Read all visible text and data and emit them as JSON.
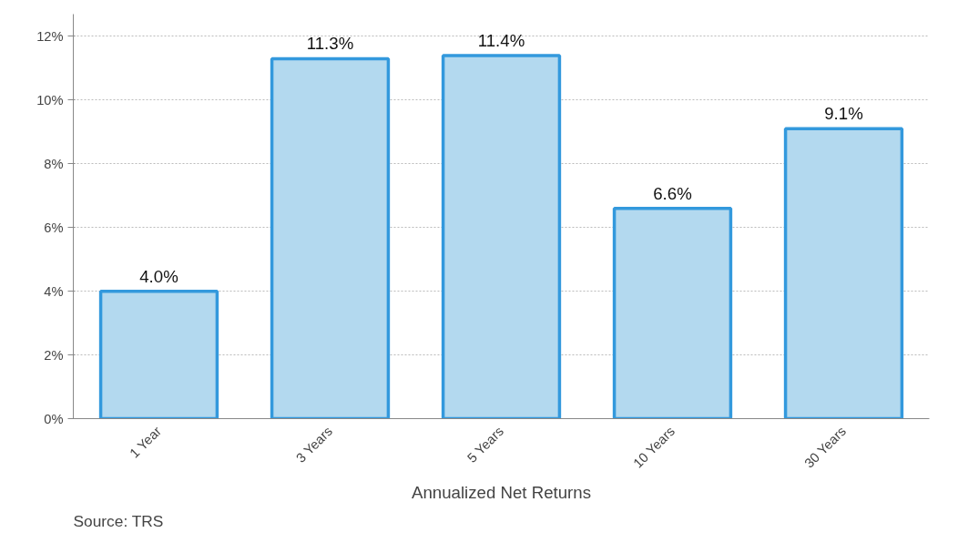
{
  "chart_data": {
    "type": "bar",
    "xlabel": "Annualized Net Returns",
    "categories": [
      "1 Year",
      "3 Years",
      "5 Years",
      "10 Years",
      "30 Years"
    ],
    "values": [
      4.0,
      11.3,
      11.4,
      6.6,
      9.1
    ],
    "value_labels": [
      "4.0%",
      "11.3%",
      "11.4%",
      "6.6%",
      "9.1%"
    ],
    "color": "#b3d9ef",
    "ylim": [
      0,
      12.7
    ],
    "yticks": [
      {
        "value": 0,
        "label": "0%"
      },
      {
        "value": 2,
        "label": "2%"
      },
      {
        "value": 4,
        "label": "4%"
      },
      {
        "value": 6,
        "label": "6%"
      },
      {
        "value": 8,
        "label": "8%"
      },
      {
        "value": 10,
        "label": "10%"
      },
      {
        "value": 12,
        "label": "12%"
      }
    ],
    "grid": "y",
    "annotations": [
      "Source: TRS"
    ]
  }
}
